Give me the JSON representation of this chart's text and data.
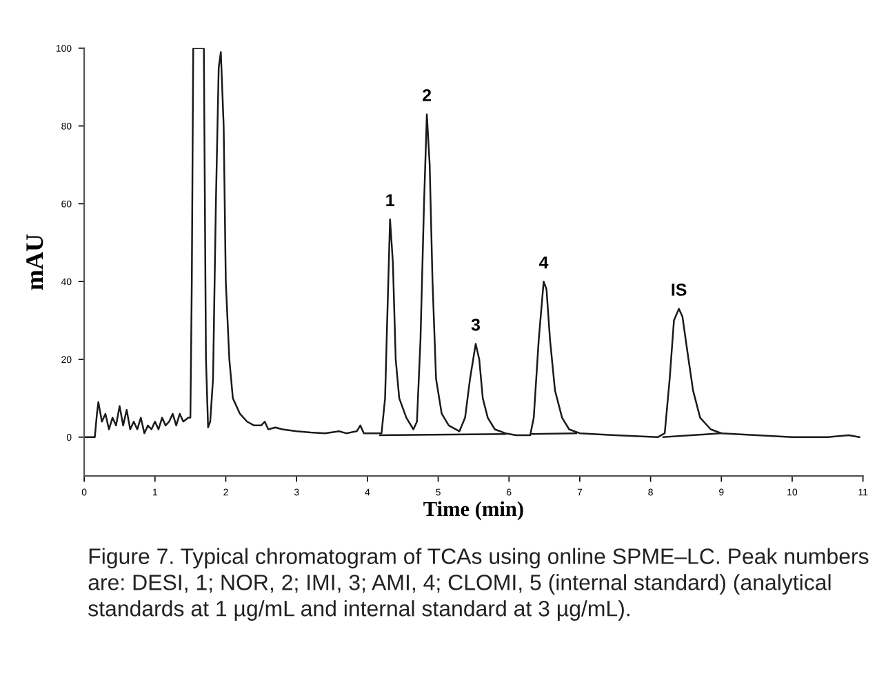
{
  "chart_data": {
    "type": "line",
    "xlabel": "Time (min)",
    "ylabel": "mAU",
    "xlim": [
      0,
      11
    ],
    "ylim": [
      -10,
      100
    ],
    "xticks": [
      0,
      1,
      2,
      3,
      4,
      5,
      6,
      7,
      8,
      9,
      10,
      11
    ],
    "yticks": [
      0,
      20,
      40,
      60,
      80,
      100
    ],
    "grid": false,
    "marker": "none",
    "line_style": "solid",
    "series": [
      {
        "color": "#1a1a1a",
        "x": [
          0,
          0.15,
          0.18,
          0.2,
          0.25,
          0.3,
          0.35,
          0.4,
          0.45,
          0.5,
          0.55,
          0.6,
          0.65,
          0.7,
          0.75,
          0.8,
          0.85,
          0.9,
          0.95,
          1.0,
          1.05,
          1.1,
          1.15,
          1.2,
          1.25,
          1.3,
          1.35,
          1.4,
          1.47,
          1.5,
          1.52,
          1.54,
          1.69,
          1.72,
          1.75,
          1.78,
          1.82,
          1.86,
          1.9,
          1.93,
          1.97,
          2.0,
          2.05,
          2.1,
          2.2,
          2.3,
          2.4,
          2.5,
          2.55,
          2.6,
          2.7,
          2.8,
          3.0,
          3.2,
          3.4,
          3.6,
          3.7,
          3.85,
          3.9,
          3.95,
          4.1,
          4.2,
          4.25,
          4.28,
          4.32,
          4.36,
          4.4,
          4.45,
          4.55,
          4.65,
          4.7,
          4.75,
          4.8,
          4.84,
          4.88,
          4.92,
          4.97,
          5.05,
          5.15,
          5.3,
          5.38,
          5.45,
          5.53,
          5.58,
          5.63,
          5.7,
          5.8,
          5.95,
          6.1,
          6.3,
          6.35,
          6.42,
          6.49,
          6.53,
          6.58,
          6.65,
          6.75,
          6.85,
          7.0,
          7.5,
          8.1,
          8.2,
          8.27,
          8.33,
          8.4,
          8.45,
          8.52,
          8.6,
          8.7,
          8.85,
          9.0,
          9.5,
          10,
          10.5,
          10.8,
          10.95
        ],
        "values": [
          0,
          0,
          6,
          9,
          4,
          6,
          2,
          5,
          3,
          8,
          3,
          7,
          2,
          4,
          2,
          5,
          1,
          3,
          2,
          4,
          2,
          5,
          3,
          4,
          6,
          3,
          6,
          4,
          5,
          5,
          40,
          100,
          100,
          20,
          2.5,
          4,
          15,
          60,
          95,
          99,
          80,
          40,
          20,
          10,
          6,
          4,
          3,
          3,
          4,
          2,
          2.5,
          2,
          1.5,
          1.2,
          1,
          1.5,
          1,
          1.5,
          3,
          1,
          1,
          1,
          10,
          30,
          56,
          45,
          20,
          10,
          5,
          2,
          4,
          25,
          60,
          83,
          70,
          40,
          15,
          6,
          3,
          1.5,
          5,
          15,
          24,
          20,
          10,
          5,
          2,
          1,
          0.5,
          0.5,
          5,
          25,
          40,
          38,
          25,
          12,
          5,
          2,
          1,
          0.5,
          0,
          1,
          15,
          30,
          33,
          31,
          22,
          12,
          5,
          2,
          1,
          0.5,
          0,
          0,
          0.5,
          0
        ]
      },
      {
        "color": "#1a1a1a",
        "x": [
          4.18,
          5.95,
          6.0,
          6.32,
          6.95,
          7.0,
          8.18,
          9.0
        ],
        "values": [
          0.5,
          0.8,
          null,
          0.8,
          1,
          null,
          0,
          1
        ]
      }
    ],
    "annotations": [
      {
        "text": "1",
        "x": 4.32,
        "y": 56
      },
      {
        "text": "2",
        "x": 4.84,
        "y": 83
      },
      {
        "text": "3",
        "x": 5.53,
        "y": 24
      },
      {
        "text": "4",
        "x": 6.49,
        "y": 40
      },
      {
        "text": "IS",
        "x": 8.4,
        "y": 33
      },
      "Figure 7. Typical chromatogram of TCAs using online SPME–LC. Peak numbers are: DESI, 1; NOR, 2; IMI, 3; AMI, 4; CLOMI, 5 (internal standard) (analytical standards at 1 µg/mL and internal standard at 3 µg/mL)."
    ]
  }
}
